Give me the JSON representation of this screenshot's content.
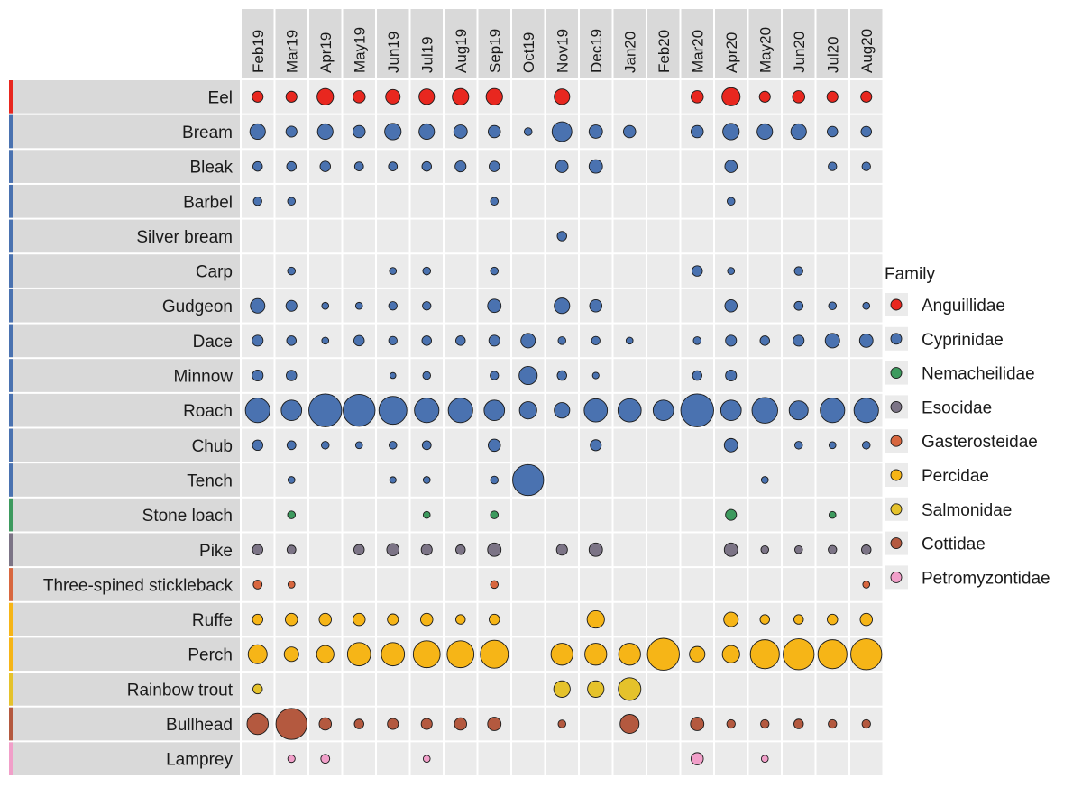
{
  "chart_data": {
    "type": "bubble-grid",
    "title": "",
    "xlabel": "",
    "ylabel": "",
    "size_unit": "relative abundance (bubble area)",
    "months": [
      "Feb19",
      "Mar19",
      "Apr19",
      "May19",
      "Jun19",
      "Jul19",
      "Aug19",
      "Sep19",
      "Oct19",
      "Nov19",
      "Dec19",
      "Jan20",
      "Feb20",
      "Mar20",
      "Apr20",
      "May20",
      "Jun20",
      "Jul20",
      "Aug20"
    ],
    "legend": {
      "title": "Family",
      "position": "right",
      "entries": [
        {
          "name": "Anguillidae",
          "color": "#e8271f"
        },
        {
          "name": "Cyprinidae",
          "color": "#4a72b0"
        },
        {
          "name": "Nemacheilidae",
          "color": "#3d9a5e"
        },
        {
          "name": "Esocidae",
          "color": "#7c7486"
        },
        {
          "name": "Gasterosteidae",
          "color": "#d8673f"
        },
        {
          "name": "Percidae",
          "color": "#f6b517"
        },
        {
          "name": "Salmonidae",
          "color": "#e5c22b"
        },
        {
          "name": "Cottidae",
          "color": "#b4593f"
        },
        {
          "name": "Petromyzontidae",
          "color": "#f19fc9"
        }
      ]
    },
    "species": [
      {
        "name": "Eel",
        "family": "Anguillidae",
        "sizes": [
          2,
          2,
          4.5,
          2.5,
          3.5,
          4,
          4.5,
          4.5,
          0,
          4,
          0,
          0,
          0,
          2.5,
          5.5,
          2,
          2.5,
          2,
          2
        ]
      },
      {
        "name": "Bream",
        "family": "Cyprinidae",
        "sizes": [
          4,
          2,
          4,
          2.5,
          4.5,
          4,
          3,
          2.5,
          1,
          6.5,
          3,
          2.5,
          0,
          2.5,
          4.5,
          4,
          4,
          1.8,
          1.8
        ]
      },
      {
        "name": "Bleak",
        "family": "Cyprinidae",
        "sizes": [
          1.5,
          1.5,
          1.8,
          1.3,
          1.3,
          1.5,
          2,
          1.8,
          0,
          2.5,
          3,
          0,
          0,
          0,
          2.5,
          0,
          0,
          1.2,
          1.2
        ]
      },
      {
        "name": "Barbel",
        "family": "Cyprinidae",
        "sizes": [
          1.2,
          1,
          0,
          0,
          0,
          0,
          0,
          1,
          0,
          0,
          0,
          0,
          0,
          0,
          1,
          0,
          0,
          0,
          0
        ]
      },
      {
        "name": "Silver bream",
        "family": "Cyprinidae",
        "sizes": [
          0,
          0,
          0,
          0,
          0,
          0,
          0,
          0,
          0,
          1.5,
          0,
          0,
          0,
          0,
          0,
          0,
          0,
          0,
          0
        ]
      },
      {
        "name": "Carp",
        "family": "Cyprinidae",
        "sizes": [
          0,
          1,
          0,
          0,
          0.8,
          1,
          0,
          1,
          0,
          0,
          0,
          0,
          0,
          1.8,
          0.8,
          0,
          1.2,
          0,
          0
        ]
      },
      {
        "name": "Gudgeon",
        "family": "Cyprinidae",
        "sizes": [
          3.5,
          2,
          0.8,
          0.8,
          1.2,
          1.2,
          0,
          3,
          0,
          4,
          2.5,
          0,
          0,
          0,
          2.5,
          0,
          1.3,
          1,
          0.8
        ]
      },
      {
        "name": "Dace",
        "family": "Cyprinidae",
        "sizes": [
          2,
          1.5,
          0.8,
          1.8,
          1.2,
          1.5,
          1.5,
          2,
          3.5,
          1,
          1.2,
          0.8,
          0,
          1,
          2,
          1.5,
          2,
          3.5,
          3
        ]
      },
      {
        "name": "Minnow",
        "family": "Cyprinidae",
        "sizes": [
          2,
          1.8,
          0,
          0,
          0.6,
          1,
          0,
          1.2,
          5.5,
          1.5,
          0.7,
          0,
          0,
          1.5,
          2,
          0,
          0,
          0,
          0
        ]
      },
      {
        "name": "Roach",
        "family": "Cyprinidae",
        "sizes": [
          10,
          7,
          18,
          17,
          13,
          10,
          10,
          7,
          5,
          4,
          9,
          9,
          7,
          18,
          7,
          11,
          6,
          10,
          10
        ]
      },
      {
        "name": "Chub",
        "family": "Cyprinidae",
        "sizes": [
          1.8,
          1.3,
          1,
          0.8,
          1,
          1.3,
          0,
          2.5,
          0,
          0,
          2,
          0,
          0,
          0,
          3,
          0,
          1,
          0.8,
          1
        ]
      },
      {
        "name": "Tench",
        "family": "Cyprinidae",
        "sizes": [
          0,
          0.8,
          0,
          0,
          0.7,
          0.8,
          0,
          1,
          16,
          0,
          0,
          0,
          0,
          0,
          0,
          0.8,
          0,
          0,
          0
        ]
      },
      {
        "name": "Stone loach",
        "family": "Nemacheilidae",
        "sizes": [
          0,
          1,
          0,
          0,
          0,
          0.8,
          0,
          1,
          0,
          0,
          0,
          0,
          0,
          0,
          2,
          0,
          0,
          0.8,
          0
        ]
      },
      {
        "name": "Pike",
        "family": "Esocidae",
        "sizes": [
          1.8,
          1.3,
          0,
          1.8,
          2.5,
          2,
          1.5,
          3,
          0,
          2,
          3,
          0,
          0,
          0,
          3,
          1,
          1,
          1.2,
          1.5
        ]
      },
      {
        "name": "Three-spined stickleback",
        "family": "Gasterosteidae",
        "sizes": [
          1.3,
          0.8,
          0,
          0,
          0,
          0,
          0,
          1,
          0,
          0,
          0,
          0,
          0,
          0,
          0,
          0,
          0,
          0,
          0.8
        ]
      },
      {
        "name": "Ruffe",
        "family": "Percidae",
        "sizes": [
          1.8,
          2.5,
          2.5,
          2.5,
          2,
          2.5,
          1.5,
          1.8,
          0,
          0,
          5,
          0,
          0,
          0,
          3.5,
          1.5,
          1.5,
          1.8,
          2.5
        ]
      },
      {
        "name": "Perch",
        "family": "Percidae",
        "sizes": [
          6,
          3.5,
          5,
          9,
          9,
          12,
          12,
          13,
          0,
          8,
          8,
          8,
          17,
          4,
          5,
          14,
          16,
          14,
          16
        ]
      },
      {
        "name": "Rainbow trout",
        "family": "Salmonidae",
        "sizes": [
          1.5,
          0,
          0,
          0,
          0,
          0,
          0,
          0,
          0,
          4.5,
          4.5,
          8.5,
          0,
          0,
          0,
          0,
          0,
          0,
          0
        ]
      },
      {
        "name": "Bullhead",
        "family": "Cottidae",
        "sizes": [
          7.5,
          16,
          2.5,
          1.5,
          2,
          2,
          2.5,
          3,
          0,
          1,
          0,
          6,
          0,
          3,
          1.2,
          1.2,
          1.5,
          1.2,
          1.2
        ]
      },
      {
        "name": "Lamprey",
        "family": "Petromyzontidae",
        "sizes": [
          0,
          0.9,
          1.3,
          0,
          0,
          0.8,
          0,
          0,
          0,
          0,
          0,
          0,
          0,
          2.5,
          0,
          0.8,
          0,
          0,
          0
        ]
      }
    ]
  }
}
